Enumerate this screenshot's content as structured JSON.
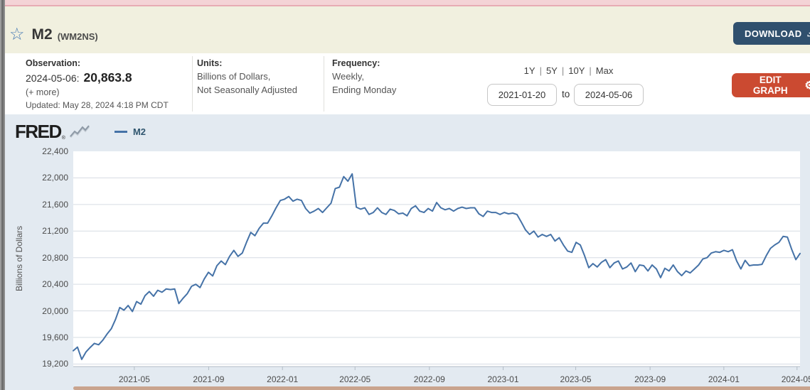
{
  "header": {
    "title": "M2",
    "series_id": "(WM2NS)",
    "star_icon": "☆",
    "download_label": "DOWNLOAD"
  },
  "meta": {
    "observation": {
      "label": "Observation:",
      "date": "2024-05-06:",
      "value": "20,863.8",
      "more": "(+ more)",
      "updated": "Updated: May 28, 2024 4:18 PM CDT"
    },
    "units": {
      "label": "Units:",
      "line1": "Billions of Dollars,",
      "line2": "Not Seasonally Adjusted"
    },
    "frequency": {
      "label": "Frequency:",
      "line1": "Weekly,",
      "line2": "Ending Monday"
    },
    "range_links": [
      "1Y",
      "5Y",
      "10Y",
      "Max"
    ],
    "range_sep": "|",
    "date_from": "2021-01-20",
    "to_label": "to",
    "date_to": "2024-05-06",
    "edit_graph_label": "EDIT GRAPH",
    "gear_icon": "⚙"
  },
  "chart": {
    "logo": "FRED",
    "logo_reg": "®",
    "legend_label": "M2"
  },
  "colors": {
    "line": "#4572a7",
    "gridline": "#d6dce3",
    "axis": "#b3bcc6",
    "chart_bg": "#e3eaf1",
    "download_btn": "#30506e",
    "edit_btn": "#cb4a31"
  },
  "chart_data": {
    "type": "line",
    "title": "M2 (WM2NS)",
    "series_name": "M2",
    "ylabel": "Billions of Dollars",
    "xlabel": "",
    "legend_position": "top-left",
    "grid": true,
    "line_color": "#4572a7",
    "frequency": "weekly",
    "start_date": "2021-01-20",
    "end_date": "2024-05-06",
    "ylim": [
      19162,
      22400
    ],
    "y_tick_values": [
      22400,
      22000,
      21600,
      21200,
      20800,
      20400,
      20000,
      19600,
      19200
    ],
    "y_tick_labels": [
      "22,400",
      "22,000",
      "21,600",
      "21,200",
      "20,800",
      "20,400",
      "20,000",
      "19,600",
      "19,200"
    ],
    "x_ticks": [
      {
        "label": "2021-05",
        "date": "2021-05-01"
      },
      {
        "label": "2021-09",
        "date": "2021-09-01"
      },
      {
        "label": "2022-01",
        "date": "2022-01-01"
      },
      {
        "label": "2022-05",
        "date": "2022-05-01"
      },
      {
        "label": "2022-09",
        "date": "2022-09-01"
      },
      {
        "label": "2023-01",
        "date": "2023-01-01"
      },
      {
        "label": "2023-05",
        "date": "2023-05-01"
      },
      {
        "label": "2023-09",
        "date": "2023-09-01"
      },
      {
        "label": "2024-01",
        "date": "2024-01-01"
      },
      {
        "label": "2024-05",
        "date": "2024-05-01"
      }
    ],
    "values": [
      19400,
      19455,
      19270,
      19380,
      19450,
      19510,
      19490,
      19560,
      19650,
      19730,
      19870,
      20050,
      20010,
      20080,
      19990,
      20140,
      20100,
      20230,
      20290,
      20220,
      20310,
      20280,
      20330,
      20320,
      20330,
      20110,
      20190,
      20260,
      20370,
      20400,
      20350,
      20480,
      20580,
      20525,
      20680,
      20750,
      20695,
      20820,
      20910,
      20820,
      20870,
      21030,
      21180,
      21130,
      21240,
      21320,
      21320,
      21430,
      21550,
      21660,
      21680,
      21720,
      21650,
      21680,
      21660,
      21540,
      21470,
      21500,
      21540,
      21480,
      21550,
      21620,
      21840,
      21860,
      22020,
      21950,
      22060,
      21560,
      21530,
      21550,
      21450,
      21480,
      21550,
      21480,
      21450,
      21530,
      21510,
      21460,
      21470,
      21430,
      21540,
      21580,
      21500,
      21480,
      21540,
      21500,
      21630,
      21550,
      21520,
      21540,
      21500,
      21540,
      21560,
      21540,
      21550,
      21550,
      21460,
      21420,
      21500,
      21480,
      21480,
      21450,
      21480,
      21460,
      21470,
      21450,
      21340,
      21220,
      21150,
      21200,
      21110,
      21150,
      21120,
      21150,
      21050,
      21100,
      20990,
      20900,
      20880,
      21030,
      20990,
      20830,
      20650,
      20710,
      20660,
      20730,
      20770,
      20650,
      20720,
      20750,
      20630,
      20660,
      20720,
      20590,
      20690,
      20680,
      20600,
      20690,
      20630,
      20500,
      20640,
      20600,
      20690,
      20590,
      20530,
      20600,
      20570,
      20630,
      20690,
      20780,
      20800,
      20870,
      20890,
      20880,
      20910,
      20890,
      20920,
      20750,
      20630,
      20760,
      20680,
      20690,
      20690,
      20700,
      20830,
      20940,
      20990,
      21030,
      21120,
      21110,
      20930,
      20770,
      20863.8
    ]
  }
}
